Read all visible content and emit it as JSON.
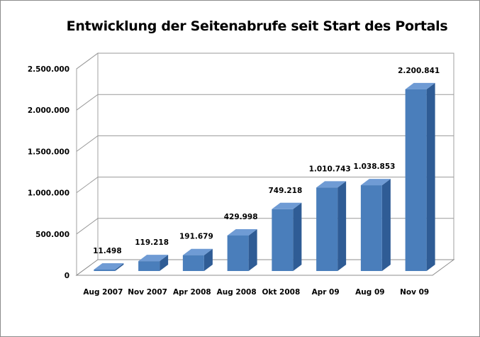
{
  "chart_data": {
    "type": "bar",
    "title": "Entwicklung der Seitenabrufe seit Start des Portals",
    "xlabel": "",
    "ylabel": "",
    "categories": [
      "Aug 2007",
      "Nov 2007",
      "Apr 2008",
      "Aug 2008",
      "Okt 2008",
      "Apr 09",
      "Aug 09",
      "Nov 09"
    ],
    "values": [
      11498,
      119218,
      191679,
      429998,
      749218,
      1010743,
      1038853,
      2200841
    ],
    "value_labels": [
      "11.498",
      "119.218",
      "191.679",
      "429.998",
      "749.218",
      "1.010.743",
      "1.038.853",
      "2.200.841"
    ],
    "ylim": [
      0,
      2500000
    ],
    "yticks": [
      0,
      500000,
      1000000,
      1500000,
      2000000,
      2500000
    ],
    "ytick_labels": [
      "0",
      "500.000",
      "1.000.000",
      "1.500.000",
      "2.000.000",
      "2.500.000"
    ],
    "grid": true,
    "legend": "none",
    "bar_color": "#4a7ebb",
    "style": "3d-column"
  }
}
